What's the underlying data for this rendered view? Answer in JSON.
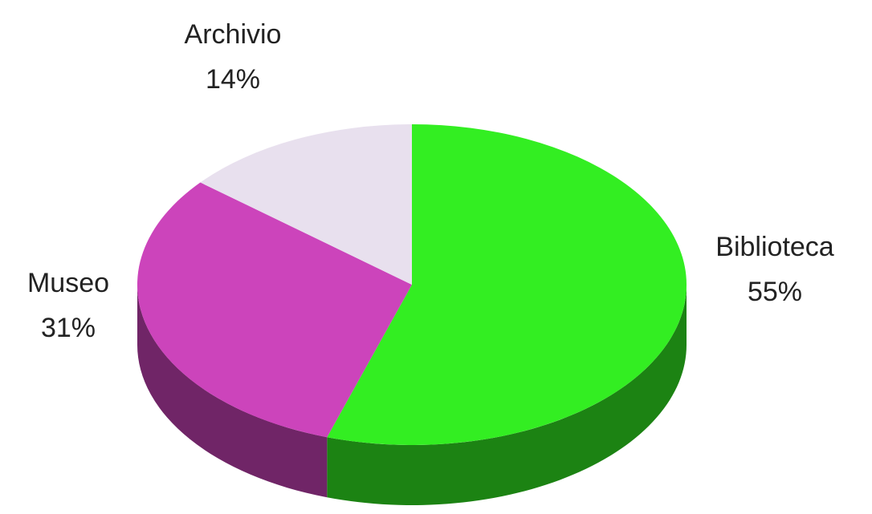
{
  "chart_data": {
    "type": "pie",
    "categories": [
      "Biblioteca",
      "Museo",
      "Archivio"
    ],
    "values": [
      55,
      31,
      14
    ],
    "value_labels": [
      "55%",
      "31%",
      "14%"
    ],
    "colors": [
      "#33ee22",
      "#cc44bb",
      "#e8e0ee"
    ]
  }
}
